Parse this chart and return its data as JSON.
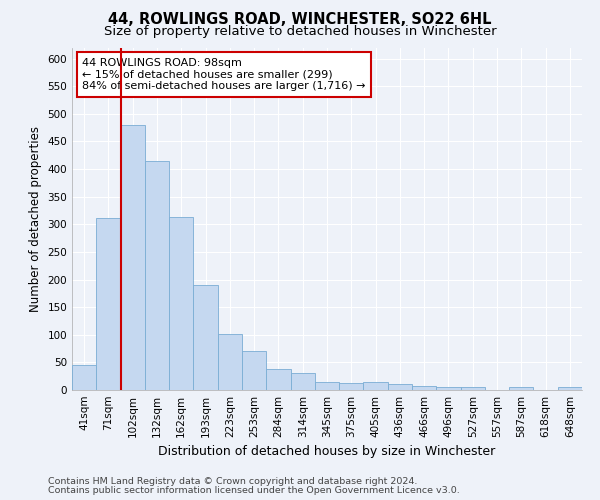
{
  "title": "44, ROWLINGS ROAD, WINCHESTER, SO22 6HL",
  "subtitle": "Size of property relative to detached houses in Winchester",
  "xlabel": "Distribution of detached houses by size in Winchester",
  "ylabel": "Number of detached properties",
  "bar_color": "#c5d8f0",
  "bar_edge_color": "#7aadd4",
  "categories": [
    "41sqm",
    "71sqm",
    "102sqm",
    "132sqm",
    "162sqm",
    "193sqm",
    "223sqm",
    "253sqm",
    "284sqm",
    "314sqm",
    "345sqm",
    "375sqm",
    "405sqm",
    "436sqm",
    "466sqm",
    "496sqm",
    "527sqm",
    "557sqm",
    "587sqm",
    "618sqm",
    "648sqm"
  ],
  "values": [
    46,
    311,
    479,
    415,
    313,
    190,
    102,
    70,
    38,
    30,
    14,
    13,
    14,
    10,
    8,
    5,
    5,
    0,
    5,
    0,
    5
  ],
  "ylim": [
    0,
    620
  ],
  "yticks": [
    0,
    50,
    100,
    150,
    200,
    250,
    300,
    350,
    400,
    450,
    500,
    550,
    600
  ],
  "vline_x_idx": 1.5,
  "vline_color": "#cc0000",
  "annotation_text": "44 ROWLINGS ROAD: 98sqm\n← 15% of detached houses are smaller (299)\n84% of semi-detached houses are larger (1,716) →",
  "annotation_box_facecolor": "#ffffff",
  "annotation_box_edgecolor": "#cc0000",
  "footnote1": "Contains HM Land Registry data © Crown copyright and database right 2024.",
  "footnote2": "Contains public sector information licensed under the Open Government Licence v3.0.",
  "background_color": "#eef2f9",
  "grid_color": "#ffffff",
  "title_fontsize": 10.5,
  "subtitle_fontsize": 9.5,
  "xlabel_fontsize": 9,
  "ylabel_fontsize": 8.5,
  "tick_fontsize": 7.5,
  "annotation_fontsize": 8,
  "footnote_fontsize": 6.8
}
